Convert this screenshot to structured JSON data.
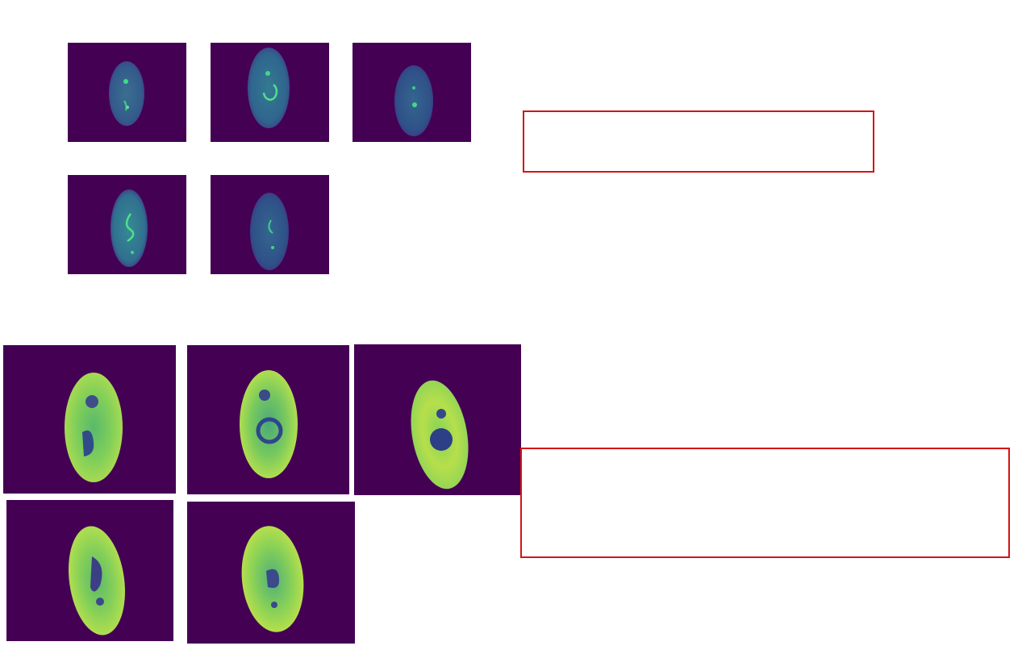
{
  "colors": {
    "background": "#440154",
    "annotation_border": "#d41414"
  },
  "top_row_panels": [
    {
      "id": "top-cell-1",
      "variant": "dim-spots"
    },
    {
      "id": "top-cell-2",
      "variant": "dim-ring"
    },
    {
      "id": "top-cell-3",
      "variant": "dim-faint"
    },
    {
      "id": "top-cell-4",
      "variant": "dim-curve"
    },
    {
      "id": "top-cell-5",
      "variant": "dim-spots"
    }
  ],
  "bottom_row_panels": [
    {
      "id": "bottom-cell-1",
      "variant": "bright-spots"
    },
    {
      "id": "bottom-cell-2",
      "variant": "bright-ring"
    },
    {
      "id": "bottom-cell-3",
      "variant": "bright-dark-nucleus"
    },
    {
      "id": "bottom-cell-4",
      "variant": "bright-curve"
    },
    {
      "id": "bottom-cell-5",
      "variant": "bright-spots"
    }
  ],
  "annotation_boxes": [
    {
      "id": "annotation-box-top",
      "text": ""
    },
    {
      "id": "annotation-box-bottom",
      "text": ""
    }
  ]
}
